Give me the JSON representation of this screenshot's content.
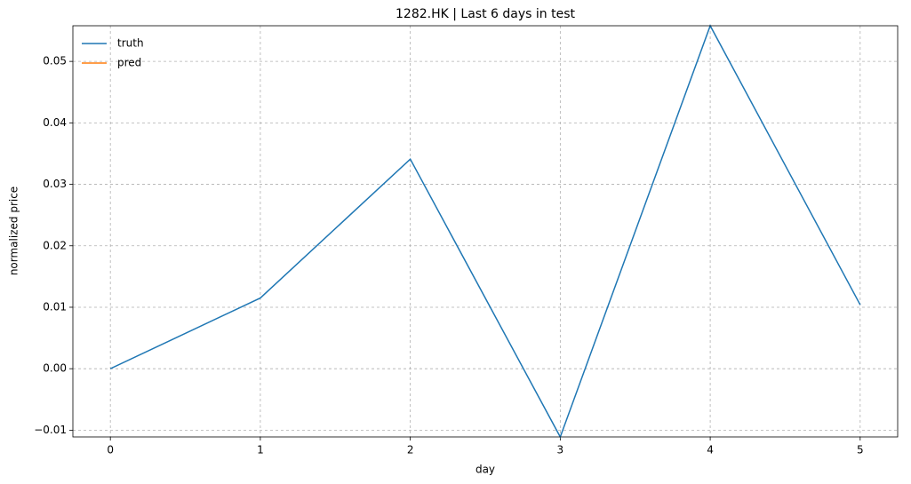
{
  "chart_data": {
    "type": "line",
    "title": "1282.HK | Last 6 days in test",
    "xlabel": "day",
    "ylabel": "normalized price",
    "x": [
      0,
      1,
      2,
      3,
      4,
      5
    ],
    "series": [
      {
        "name": "truth",
        "color": "#1f77b4",
        "values": [
          0,
          0.0115,
          0.0341,
          -0.0111,
          0.0558,
          0.0104
        ]
      },
      {
        "name": "pred",
        "color": "#ff7f0e",
        "values": [
          null,
          null,
          null,
          null,
          null,
          null
        ]
      }
    ],
    "xlim": [
      -0.25,
      5.25
    ],
    "xticks": [
      0,
      1,
      2,
      3,
      4,
      5
    ],
    "ylim": [
      -0.0111,
      0.0558
    ],
    "yticks": [
      {
        "value": -0.01,
        "label": "−0.01"
      },
      {
        "value": 0,
        "label": "0.00"
      },
      0.01,
      0.02,
      0.03,
      0.04,
      0.05
    ],
    "grid": true,
    "legend": "upper left"
  }
}
